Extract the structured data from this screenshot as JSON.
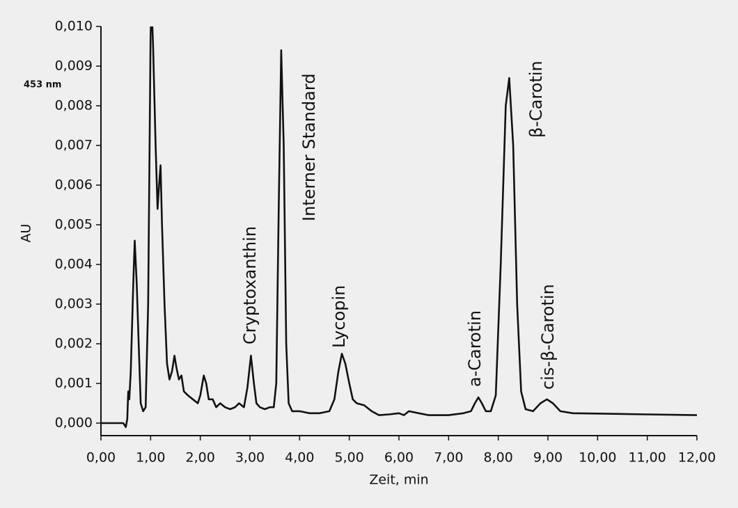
{
  "chart_data": {
    "type": "line",
    "color": "#111111",
    "x_label": "Zeit, min",
    "y_label": "AU",
    "detector_label": "453 nm",
    "annotations": [
      "Cryptoxanthin",
      "Interner Standard",
      "Lycopin",
      "a-Carotin",
      "β-Carotin",
      "cis-β-Carotin"
    ],
    "xlim": [
      0,
      12
    ],
    "ylim": [
      0,
      0.01
    ],
    "xticks": [
      {
        "value": 0,
        "label": "0,00"
      },
      {
        "value": 1,
        "label": "1,00"
      },
      {
        "value": 2,
        "label": "2,00"
      },
      {
        "value": 3,
        "label": "3,00"
      },
      {
        "value": 4,
        "label": "4,00"
      },
      {
        "value": 5,
        "label": "5,00"
      },
      {
        "value": 6,
        "label": "6,00"
      },
      {
        "value": 7,
        "label": "7,00"
      },
      {
        "value": 8,
        "label": "8,00"
      },
      {
        "value": 9,
        "label": "9,00"
      },
      {
        "value": 10,
        "label": "10,00"
      },
      {
        "value": 11,
        "label": "11,00"
      },
      {
        "value": 12,
        "label": "12,00"
      }
    ],
    "yticks": [
      {
        "value": 0,
        "label": "0,000"
      },
      {
        "value": 0.001,
        "label": "0,001"
      },
      {
        "value": 0.002,
        "label": "0,002"
      },
      {
        "value": 0.003,
        "label": "0,003"
      },
      {
        "value": 0.004,
        "label": "0,004"
      },
      {
        "value": 0.005,
        "label": "0,005"
      },
      {
        "value": 0.006,
        "label": "0,006"
      },
      {
        "value": 0.007,
        "label": "0,007"
      },
      {
        "value": 0.008,
        "label": "0,008"
      },
      {
        "value": 0.009,
        "label": "0,009"
      },
      {
        "value": 0.01,
        "label": "0,010"
      }
    ],
    "x": [
      0,
      0.45,
      0.5,
      0.53,
      0.55,
      0.57,
      0.6,
      0.65,
      0.68,
      0.72,
      0.76,
      0.8,
      0.85,
      0.9,
      0.95,
      1.0,
      1.02,
      1.05,
      1.1,
      1.14,
      1.17,
      1.2,
      1.23,
      1.28,
      1.33,
      1.38,
      1.43,
      1.48,
      1.52,
      1.57,
      1.62,
      1.67,
      1.75,
      1.85,
      1.95,
      2.0,
      2.07,
      2.12,
      2.17,
      2.25,
      2.32,
      2.4,
      2.5,
      2.6,
      2.7,
      2.78,
      2.88,
      2.95,
      3.02,
      3.08,
      3.13,
      3.2,
      3.3,
      3.4,
      3.48,
      3.53,
      3.58,
      3.63,
      3.68,
      3.73,
      3.78,
      3.85,
      4.0,
      4.2,
      4.4,
      4.6,
      4.7,
      4.78,
      4.85,
      4.92,
      5.0,
      5.07,
      5.15,
      5.3,
      5.45,
      5.6,
      5.8,
      6.0,
      6.1,
      6.2,
      6.4,
      6.6,
      7.0,
      7.3,
      7.45,
      7.53,
      7.6,
      7.67,
      7.75,
      7.85,
      7.95,
      8.05,
      8.15,
      8.22,
      8.3,
      8.38,
      8.46,
      8.55,
      8.7,
      8.85,
      8.98,
      9.1,
      9.25,
      9.5,
      10.0,
      11.0,
      12.0
    ],
    "values": [
      0,
      0,
      -0.0001,
      0.0001,
      0.0008,
      0.0006,
      0.0013,
      0.0035,
      0.0046,
      0.0035,
      0.002,
      0.0005,
      0.0003,
      0.0004,
      0.003,
      0.0098,
      0.0105,
      0.0095,
      0.007,
      0.0054,
      0.006,
      0.0065,
      0.005,
      0.003,
      0.0015,
      0.0011,
      0.0013,
      0.0017,
      0.0014,
      0.0011,
      0.0012,
      0.0008,
      0.0007,
      0.0006,
      0.0005,
      0.0007,
      0.0012,
      0.001,
      0.0006,
      0.0006,
      0.0004,
      0.0005,
      0.0004,
      0.00035,
      0.0004,
      0.0005,
      0.0004,
      0.0009,
      0.0017,
      0.001,
      0.0005,
      0.0004,
      0.00035,
      0.0004,
      0.0004,
      0.001,
      0.0055,
      0.0094,
      0.007,
      0.002,
      0.0005,
      0.0003,
      0.0003,
      0.00025,
      0.00025,
      0.0003,
      0.0006,
      0.0013,
      0.00175,
      0.0015,
      0.001,
      0.0006,
      0.0005,
      0.00045,
      0.0003,
      0.0002,
      0.00022,
      0.00025,
      0.0002,
      0.0003,
      0.00025,
      0.0002,
      0.0002,
      0.00025,
      0.0003,
      0.0005,
      0.00065,
      0.0005,
      0.0003,
      0.0003,
      0.0007,
      0.004,
      0.008,
      0.0087,
      0.007,
      0.003,
      0.0008,
      0.00035,
      0.0003,
      0.0005,
      0.0006,
      0.0005,
      0.0003,
      0.00025,
      0.00024,
      0.00022,
      0.0002
    ]
  }
}
